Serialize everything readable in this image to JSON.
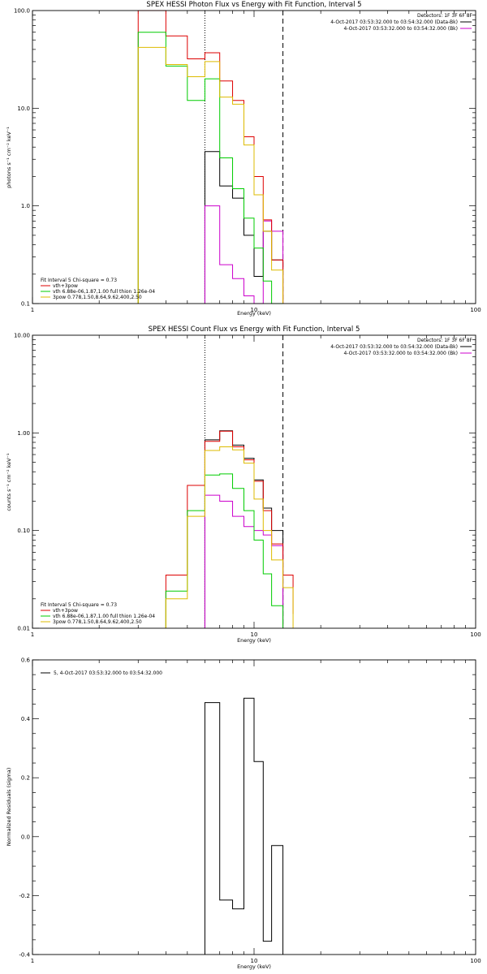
{
  "chart_data": [
    {
      "type": "line",
      "title": "SPEX HESSI Photon Flux vs Energy with Fit Function, Interval 5",
      "xlabel": "Energy (keV)",
      "ylabel": "photons s⁻¹ cm⁻² keV⁻¹",
      "xscale": "log",
      "yscale": "log",
      "xlim": [
        1,
        100
      ],
      "ylim": [
        0.1,
        100
      ],
      "xticks": [
        {
          "v": 1,
          "label": "1"
        },
        {
          "v": 10,
          "label": "10"
        },
        {
          "v": 100,
          "label": "100"
        }
      ],
      "yticks": [
        {
          "v": 0.1,
          "label": "0.1"
        },
        {
          "v": 1,
          "label": "1.0"
        },
        {
          "v": 10,
          "label": "10.0"
        },
        {
          "v": 100,
          "label": "100.0"
        }
      ],
      "vlines": [
        {
          "x": 6.0,
          "style": "dotted"
        },
        {
          "x": 13.5,
          "style": "dashed"
        }
      ],
      "legend_topright": [
        {
          "text": "Detectors: 1F 3F 6F 8F",
          "color": ""
        },
        {
          "text": "4-Oct-2017 03:53:32.000 to 03:54:32.000 (Data-Bk)",
          "color": "#000000"
        },
        {
          "text": "4-Oct-2017 03:53:32.000 to 03:54:32.000 (Bk)",
          "color": "#cc00cc"
        }
      ],
      "legend_bottomleft": [
        {
          "text": "Fit Interval 5   Chi-square = 0.73",
          "color": ""
        },
        {
          "text": "vth+3pow",
          "color": "#dd0000"
        },
        {
          "text": "vth 6.88e-06,1.87,1.00   full thion 1.26e-04",
          "color": "#00cc00"
        },
        {
          "text": "3pow 0.778,1.50,8.64,9.62,400,2.50",
          "color": "#ddbb00"
        }
      ],
      "series": [
        {
          "color": "#000000",
          "edges": [
            6,
            7,
            8,
            9,
            10,
            11,
            12,
            13.5
          ],
          "values": [
            3.6,
            1.6,
            1.2,
            0.5,
            0.19,
            0.55,
            0.28
          ]
        },
        {
          "color": "#cc00cc",
          "edges": [
            6,
            7,
            8,
            9,
            10,
            11,
            12,
            13.5
          ],
          "values": [
            1.0,
            0.25,
            0.18,
            0.12,
            0.08,
            0.7,
            0.55
          ]
        },
        {
          "color": "#dd0000",
          "edges": [
            3,
            4,
            5,
            6,
            7,
            8,
            9,
            10,
            11,
            12,
            13.5
          ],
          "values": [
            100,
            55,
            32,
            37,
            19,
            12,
            5.1,
            2.0,
            0.72,
            0.28,
            0.1
          ]
        },
        {
          "color": "#00cc00",
          "edges": [
            3,
            4,
            5,
            6,
            7,
            8,
            9,
            10,
            11,
            12,
            13.5
          ],
          "values": [
            60,
            27,
            12,
            20,
            3.1,
            1.5,
            0.75,
            0.37,
            0.17,
            0.1,
            0.1
          ]
        },
        {
          "color": "#ddbb00",
          "edges": [
            3,
            4,
            5,
            6,
            7,
            8,
            9,
            10,
            11,
            12,
            13.5
          ],
          "values": [
            42,
            28,
            21,
            30,
            13,
            11,
            4.2,
            1.3,
            0.55,
            0.22,
            0.1
          ]
        }
      ]
    },
    {
      "type": "line",
      "title": "SPEX HESSI Count Flux vs Energy with Fit Function, Interval 5",
      "xlabel": "Energy (keV)",
      "ylabel": "counts s⁻¹ cm⁻² keV⁻¹",
      "xscale": "log",
      "yscale": "log",
      "xlim": [
        1,
        100
      ],
      "ylim": [
        0.01,
        10
      ],
      "xticks": [
        {
          "v": 1,
          "label": "1"
        },
        {
          "v": 10,
          "label": "10"
        },
        {
          "v": 100,
          "label": "100"
        }
      ],
      "yticks": [
        {
          "v": 0.01,
          "label": "0.01"
        },
        {
          "v": 0.1,
          "label": "0.10"
        },
        {
          "v": 1,
          "label": "1.00"
        },
        {
          "v": 10,
          "label": "10.00"
        }
      ],
      "vlines": [
        {
          "x": 6.0,
          "style": "dotted"
        },
        {
          "x": 13.5,
          "style": "dashed"
        }
      ],
      "legend_topright": [
        {
          "text": "Detectors: 1F 3F 6F 8F",
          "color": ""
        },
        {
          "text": "4-Oct-2017 03:53:32.000 to 03:54:32.000 (Data-Bk)",
          "color": "#000000"
        },
        {
          "text": "4-Oct-2017 03:53:32.000 to 03:54:32.000 (Bk)",
          "color": "#cc00cc"
        }
      ],
      "legend_bottomleft": [
        {
          "text": "Fit Interval 5   Chi-square = 0.73",
          "color": ""
        },
        {
          "text": "vth+3pow",
          "color": "#dd0000"
        },
        {
          "text": "vth 6.88e-06,1.87,1.00   full thion 1.26e-04",
          "color": "#00cc00"
        },
        {
          "text": "3pow 0.778,1.50,8.64,9.62,400,2.50",
          "color": "#ddbb00"
        }
      ],
      "series": [
        {
          "color": "#000000",
          "edges": [
            6,
            7,
            8,
            9,
            10,
            11,
            12,
            13.5
          ],
          "values": [
            0.85,
            1.05,
            0.75,
            0.55,
            0.33,
            0.17,
            0.1
          ]
        },
        {
          "color": "#cc00cc",
          "edges": [
            6,
            7,
            8,
            9,
            10,
            11,
            12,
            13.5
          ],
          "values": [
            0.23,
            0.2,
            0.14,
            0.11,
            0.1,
            0.09,
            0.07
          ]
        },
        {
          "color": "#dd0000",
          "edges": [
            4,
            5,
            6,
            7,
            8,
            9,
            10,
            11,
            12,
            13.5,
            15
          ],
          "values": [
            0.035,
            0.29,
            0.82,
            1.04,
            0.72,
            0.53,
            0.32,
            0.16,
            0.073,
            0.035,
            0.014
          ]
        },
        {
          "color": "#00cc00",
          "edges": [
            4,
            5,
            6,
            7,
            8,
            9,
            10,
            11,
            12,
            13.5
          ],
          "values": [
            0.024,
            0.16,
            0.37,
            0.38,
            0.27,
            0.16,
            0.08,
            0.036,
            0.017
          ]
        },
        {
          "color": "#ddbb00",
          "edges": [
            4,
            5,
            6,
            7,
            8,
            9,
            10,
            11,
            12,
            13.5,
            15
          ],
          "values": [
            0.02,
            0.14,
            0.66,
            0.72,
            0.67,
            0.49,
            0.21,
            0.1,
            0.05,
            0.026,
            0.01
          ]
        }
      ]
    },
    {
      "type": "line",
      "title": "",
      "xlabel": "Energy (keV)",
      "ylabel": "Normalized Residuals (sigma)",
      "xscale": "log",
      "yscale": "linear",
      "xlim": [
        1,
        100
      ],
      "ylim": [
        -0.4,
        0.6
      ],
      "xticks": [
        {
          "v": 1,
          "label": "1"
        },
        {
          "v": 10,
          "label": "10"
        },
        {
          "v": 100,
          "label": "100"
        }
      ],
      "yticks": [
        {
          "v": -0.4,
          "label": "-0.4"
        },
        {
          "v": -0.2,
          "label": "-0.2"
        },
        {
          "v": 0.0,
          "label": "0.0"
        },
        {
          "v": 0.2,
          "label": "0.2"
        },
        {
          "v": 0.4,
          "label": "0.4"
        },
        {
          "v": 0.6,
          "label": "0.6"
        }
      ],
      "legend_topleft": [
        {
          "text": "5, 4-Oct-2017 03:53:32.000 to 03:54:32.000",
          "color": "#000000"
        }
      ],
      "series": [
        {
          "color": "#000000",
          "edges": [
            6,
            7,
            8,
            9,
            10,
            11,
            12,
            13.5
          ],
          "values": [
            0.455,
            -0.215,
            -0.245,
            0.47,
            0.255,
            -0.355,
            -0.03
          ]
        }
      ]
    }
  ]
}
